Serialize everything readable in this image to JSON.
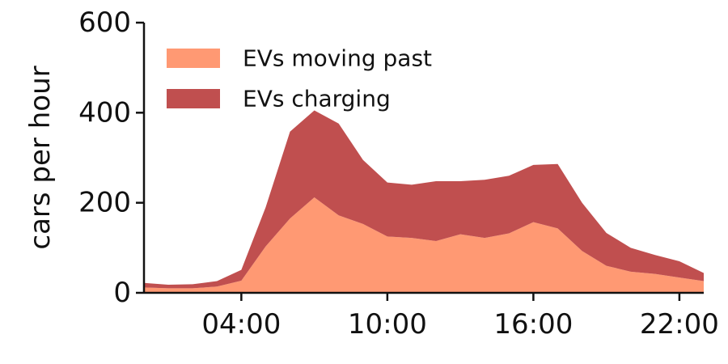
{
  "chart_data": {
    "type": "area",
    "stacked": true,
    "ylabel": "cars per hour",
    "ylim": [
      0,
      600
    ],
    "yticks": [
      0,
      200,
      400,
      600
    ],
    "xlim": [
      0,
      23
    ],
    "xticks": [
      {
        "value": 4,
        "label": "04:00"
      },
      {
        "value": 10,
        "label": "10:00"
      },
      {
        "value": 16,
        "label": "16:00"
      },
      {
        "value": 22,
        "label": "22:00"
      }
    ],
    "x": [
      0,
      1,
      2,
      3,
      4,
      5,
      6,
      7,
      8,
      9,
      10,
      11,
      12,
      13,
      14,
      15,
      16,
      17,
      18,
      19,
      20,
      21,
      22,
      23
    ],
    "series": [
      {
        "name": "EVs moving past",
        "color": "#FF9973",
        "values": [
          12,
          10,
          10,
          14,
          27,
          103,
          165,
          212,
          172,
          153,
          125,
          122,
          115,
          130,
          122,
          132,
          157,
          143,
          93,
          60,
          47,
          42,
          34,
          26
        ]
      },
      {
        "name": "EVs charging",
        "color": "#C04F4F",
        "values": [
          10,
          8,
          9,
          12,
          24,
          87,
          193,
          193,
          204,
          142,
          120,
          118,
          133,
          118,
          129,
          128,
          127,
          143,
          107,
          73,
          53,
          42,
          36,
          18
        ]
      }
    ],
    "legend_position": "top-left",
    "grid": false
  }
}
